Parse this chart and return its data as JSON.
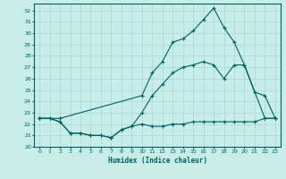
{
  "xlabel": "Humidex (Indice chaleur)",
  "bg_color": "#c8ece8",
  "line_color": "#006060",
  "grid_color": "#aaddda",
  "xlim": [
    -0.5,
    23.5
  ],
  "ylim": [
    20,
    32.6
  ],
  "xticks": [
    0,
    1,
    2,
    3,
    4,
    5,
    6,
    7,
    8,
    9,
    10,
    11,
    12,
    13,
    14,
    15,
    16,
    17,
    18,
    19,
    20,
    21,
    22,
    23
  ],
  "yticks": [
    20,
    21,
    22,
    23,
    24,
    25,
    26,
    27,
    28,
    29,
    30,
    31,
    32
  ],
  "line1_x": [
    0,
    1,
    2,
    3,
    4,
    5,
    6,
    7,
    8,
    9,
    10,
    11,
    12,
    13,
    14,
    15,
    16,
    17,
    18,
    19,
    20,
    21,
    22,
    23
  ],
  "line1_y": [
    22.5,
    22.5,
    22.2,
    21.2,
    21.2,
    21.0,
    21.0,
    20.8,
    21.5,
    21.8,
    22.0,
    21.8,
    21.8,
    22.0,
    22.0,
    22.2,
    22.2,
    22.2,
    22.2,
    22.2,
    22.2,
    22.2,
    22.5,
    22.5
  ],
  "line2_x": [
    0,
    1,
    2,
    3,
    4,
    5,
    6,
    7,
    8,
    9,
    10,
    11,
    12,
    13,
    14,
    15,
    16,
    17,
    18,
    19,
    20,
    21,
    22,
    23
  ],
  "line2_y": [
    22.5,
    22.5,
    22.2,
    21.2,
    21.2,
    21.0,
    21.0,
    20.8,
    21.5,
    21.8,
    23.0,
    24.5,
    25.5,
    26.5,
    27.0,
    27.2,
    27.5,
    27.2,
    26.0,
    27.2,
    27.2,
    24.8,
    24.5,
    22.5
  ],
  "line3_x": [
    0,
    2,
    10,
    11,
    12,
    13,
    14,
    15,
    16,
    17,
    18,
    19,
    20,
    22,
    23
  ],
  "line3_y": [
    22.5,
    22.5,
    24.5,
    26.5,
    27.5,
    29.2,
    29.5,
    30.2,
    31.2,
    32.2,
    30.5,
    29.2,
    27.2,
    22.5,
    22.5
  ]
}
